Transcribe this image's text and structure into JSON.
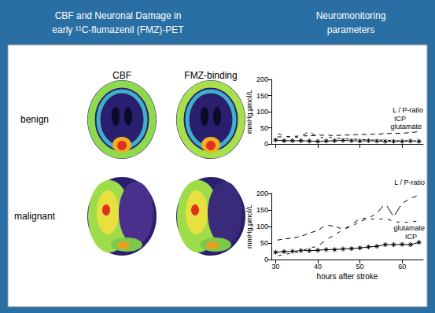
{
  "header": {
    "left": [
      "CBF and Neuronal Damage in",
      "early ¹¹C-flumazenil (FMZ)-PET"
    ],
    "right": [
      "Neuromonitoring",
      "parameters"
    ]
  },
  "image_panel": {
    "columns": [
      "CBF",
      "FMZ-binding"
    ],
    "rows": [
      "benign",
      "malignant"
    ]
  },
  "chart_data": [
    {
      "type": "line",
      "ylabel": "mmHg,µmol/L",
      "tick_labels": "y",
      "x": [
        30,
        32,
        34,
        36,
        38,
        40,
        42,
        44,
        46,
        48,
        50,
        52,
        54,
        56,
        58,
        60,
        62,
        64
      ],
      "xlim": [
        29,
        65
      ],
      "xticks": [
        30,
        40,
        50,
        60
      ],
      "ylim": [
        0,
        200
      ],
      "yticks": [
        0,
        50,
        100,
        150,
        200
      ],
      "series": [
        {
          "name": "L / P-ratio",
          "color": "#000000",
          "marker": "triangle",
          "values": [
            22,
            22,
            23,
            25,
            25,
            27,
            27,
            26,
            27,
            28,
            29,
            30,
            30,
            32,
            33,
            33,
            35,
            38
          ]
        },
        {
          "name": "glutamate",
          "color": "#000000",
          "marker": "circle",
          "values": [
            35,
            25,
            20,
            22,
            40,
            18,
            22,
            18,
            16,
            15,
            14,
            12,
            12,
            12,
            10,
            10,
            10,
            9
          ]
        },
        {
          "name": "ICP",
          "color": "#000000",
          "marker": "asterisk",
          "values": [
            12,
            10,
            10,
            10,
            9,
            8,
            9,
            10,
            11,
            10,
            9,
            10,
            9,
            8,
            8,
            8,
            9,
            8
          ]
        }
      ]
    },
    {
      "type": "line",
      "ylabel": "mmHg,µmol/L",
      "xlabel": "hours after stroke",
      "x": [
        30,
        32,
        34,
        36,
        38,
        40,
        42,
        44,
        46,
        48,
        50,
        52,
        54,
        56,
        58,
        60,
        62,
        64
      ],
      "xlim": [
        29,
        65
      ],
      "xticks": [
        30,
        40,
        50,
        60
      ],
      "ylim": [
        0,
        200
      ],
      "yticks": [
        0,
        50,
        100,
        150,
        200
      ],
      "series": [
        {
          "name": "L / P-ratio",
          "color": "#000000",
          "marker": "triangle",
          "values": [
            58,
            62,
            65,
            70,
            80,
            88,
            105,
            100,
            92,
            100,
            115,
            125,
            140,
            170,
            130,
            170,
            185,
            195
          ]
        },
        {
          "name": "glutamate",
          "color": "#000000",
          "marker": "circle",
          "values": [
            10,
            15,
            20,
            25,
            35,
            40,
            60,
            75,
            90,
            105,
            125,
            125,
            120,
            125,
            115,
            112,
            113,
            118
          ]
        },
        {
          "name": "ICP",
          "color": "#000000",
          "marker": "asterisk",
          "values": [
            22,
            24,
            25,
            27,
            27,
            28,
            30,
            30,
            32,
            33,
            35,
            38,
            40,
            45,
            45,
            46,
            45,
            52
          ]
        }
      ]
    }
  ]
}
